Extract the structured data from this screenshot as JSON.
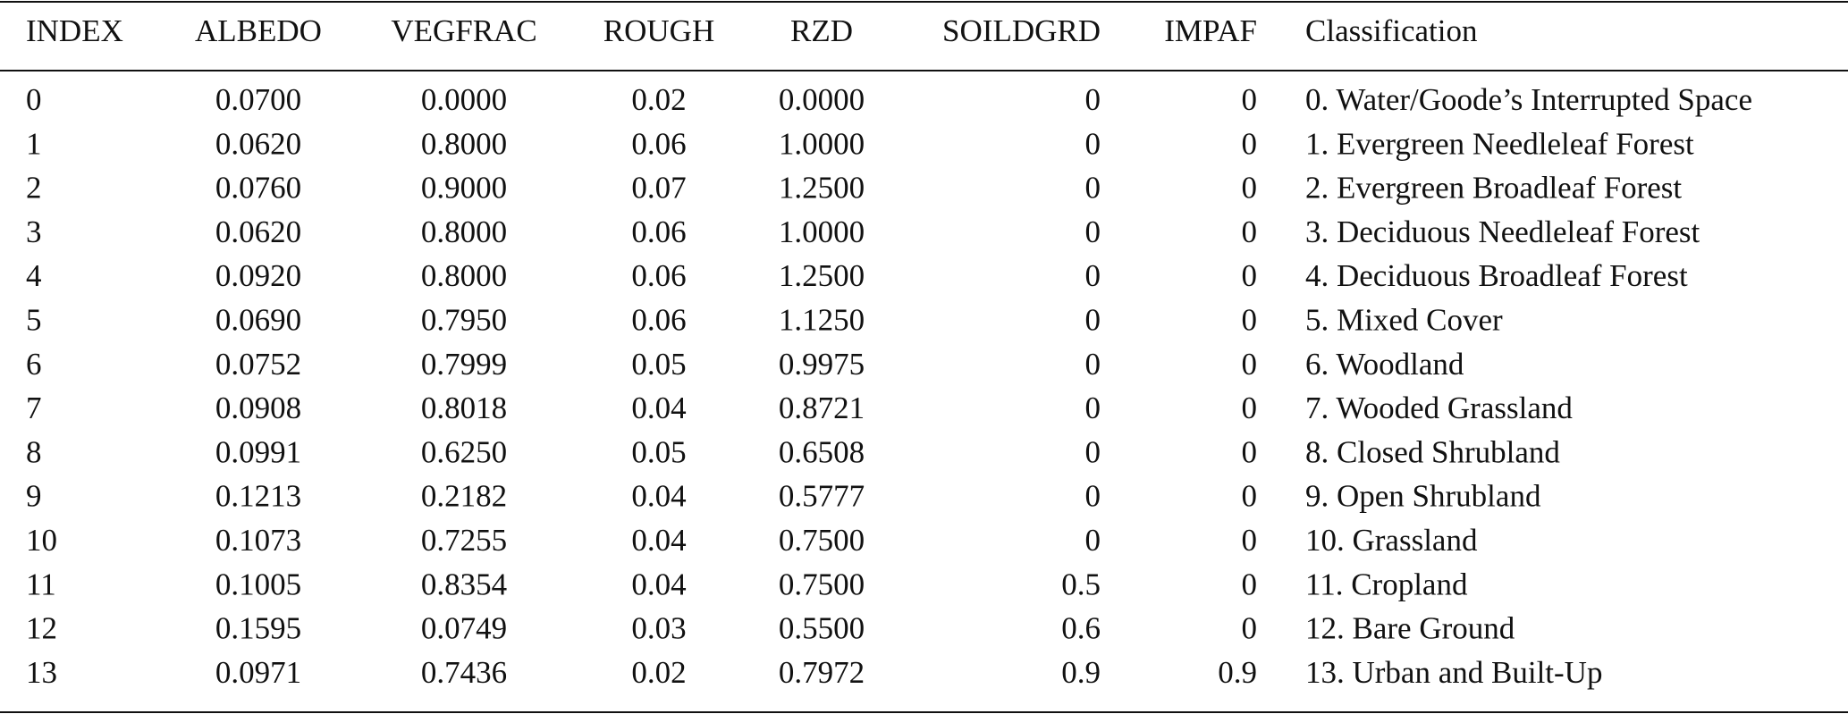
{
  "table": {
    "header": [
      "INDEX",
      "ALBEDO",
      "VEGFRAC",
      "ROUGH",
      "RZD",
      "SOILDGRD",
      "IMPAF",
      "Classification"
    ],
    "rows": [
      [
        "0",
        "0.0700",
        "0.0000",
        "0.02",
        "0.0000",
        "0",
        "0",
        "0. Water/Goode’s Interrupted Space"
      ],
      [
        "1",
        "0.0620",
        "0.8000",
        "0.06",
        "1.0000",
        "0",
        "0",
        "1. Evergreen Needleleaf Forest"
      ],
      [
        "2",
        "0.0760",
        "0.9000",
        "0.07",
        "1.2500",
        "0",
        "0",
        "2. Evergreen Broadleaf Forest"
      ],
      [
        "3",
        "0.0620",
        "0.8000",
        "0.06",
        "1.0000",
        "0",
        "0",
        "3. Deciduous Needleleaf Forest"
      ],
      [
        "4",
        "0.0920",
        "0.8000",
        "0.06",
        "1.2500",
        "0",
        "0",
        "4. Deciduous Broadleaf Forest"
      ],
      [
        "5",
        "0.0690",
        "0.7950",
        "0.06",
        "1.1250",
        "0",
        "0",
        "5. Mixed Cover"
      ],
      [
        "6",
        "0.0752",
        "0.7999",
        "0.05",
        "0.9975",
        "0",
        "0",
        "6. Woodland"
      ],
      [
        "7",
        "0.0908",
        "0.8018",
        "0.04",
        "0.8721",
        "0",
        "0",
        "7. Wooded Grassland"
      ],
      [
        "8",
        "0.0991",
        "0.6250",
        "0.05",
        "0.6508",
        "0",
        "0",
        "8. Closed Shrubland"
      ],
      [
        "9",
        "0.1213",
        "0.2182",
        "0.04",
        "0.5777",
        "0",
        "0",
        "9. Open Shrubland"
      ],
      [
        "10",
        "0.1073",
        "0.7255",
        "0.04",
        "0.7500",
        "0",
        "0",
        "10. Grassland"
      ],
      [
        "11",
        "0.1005",
        "0.8354",
        "0.04",
        "0.7500",
        "0.5",
        "0",
        "11. Cropland"
      ],
      [
        "12",
        "0.1595",
        "0.0749",
        "0.03",
        "0.5500",
        "0.6",
        "0",
        "12. Bare Ground"
      ],
      [
        "13",
        "0.0971",
        "0.7436",
        "0.02",
        "0.7972",
        "0.9",
        "0.9",
        "13. Urban and Built-Up"
      ]
    ]
  }
}
